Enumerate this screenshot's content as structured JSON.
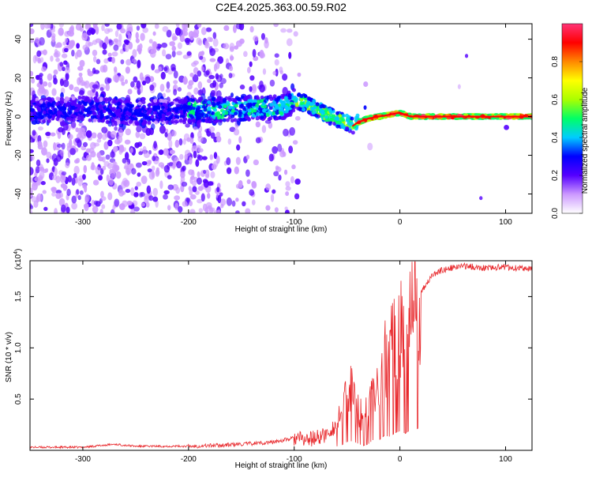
{
  "title": "C2E4.2025.363.00.59.R02",
  "chart_data": [
    {
      "type": "heatmap",
      "xlabel": "Height of straight line (km)",
      "ylabel": "Frequency (Hz)",
      "xlim": [
        -350,
        125
      ],
      "ylim": [
        -50,
        48
      ],
      "xticks": [
        -300,
        -200,
        -100,
        0,
        100
      ],
      "yticks": [
        -40,
        -20,
        0,
        20,
        40
      ],
      "colorbar": {
        "label": "Normalized spectral amplitude",
        "range": [
          0.0,
          1.0
        ],
        "ticks": [
          "0.0",
          "0.2",
          "0.4",
          "0.6",
          "0.8"
        ],
        "colors": [
          "#ffffff",
          "#cc99ff",
          "#5500ff",
          "#0000ff",
          "#00ccff",
          "#00ff66",
          "#aaff00",
          "#ffff00",
          "#ff8800",
          "#ff0000",
          "#ff3377"
        ]
      },
      "center_frequency_trace": {
        "x": [
          -350,
          -300,
          -250,
          -200,
          -150,
          -110,
          -100,
          -90,
          -80,
          -70,
          -60,
          -50,
          -45,
          -40,
          -30,
          -20,
          -10,
          0,
          10,
          50,
          125
        ],
        "y": [
          3,
          4,
          2,
          3,
          4,
          5,
          8,
          7,
          4,
          1,
          -1,
          -3,
          -5,
          -3,
          -1,
          0,
          1,
          2,
          0,
          0,
          0
        ]
      }
    },
    {
      "type": "line",
      "xlabel": "Height of straight line (km)",
      "ylabel": "SNR (10 * v/v)",
      "multiplier": "(x10",
      "multiplier_exp": "4",
      "multiplier_close": ")",
      "xlim": [
        -350,
        125
      ],
      "ylim": [
        0,
        1.85
      ],
      "xticks": [
        -300,
        -200,
        -100,
        0,
        100
      ],
      "yticks": [
        "0.5",
        "1.0",
        "1.5"
      ],
      "line_color": "#e8262a",
      "series": [
        {
          "x": [
            -350,
            -300,
            -270,
            -260,
            -250,
            -200,
            -170,
            -150,
            -120,
            -100,
            -90,
            -80,
            -70,
            -60,
            -55,
            -50,
            -45,
            -40,
            -35,
            -30,
            -25,
            -20,
            -15,
            -10,
            -5,
            0,
            5,
            10,
            15,
            20,
            30,
            40,
            50,
            60,
            80,
            100,
            110,
            125
          ],
          "y": [
            0.03,
            0.03,
            0.06,
            0.05,
            0.04,
            0.04,
            0.05,
            0.06,
            0.08,
            0.12,
            0.1,
            0.12,
            0.15,
            0.25,
            0.35,
            0.55,
            0.6,
            0.45,
            0.3,
            0.4,
            0.7,
            0.65,
            0.95,
            0.9,
            1.1,
            1.25,
            1.1,
            1.3,
            1.35,
            1.55,
            1.7,
            1.76,
            1.78,
            1.8,
            1.78,
            1.79,
            1.78,
            1.77
          ]
        }
      ]
    }
  ]
}
